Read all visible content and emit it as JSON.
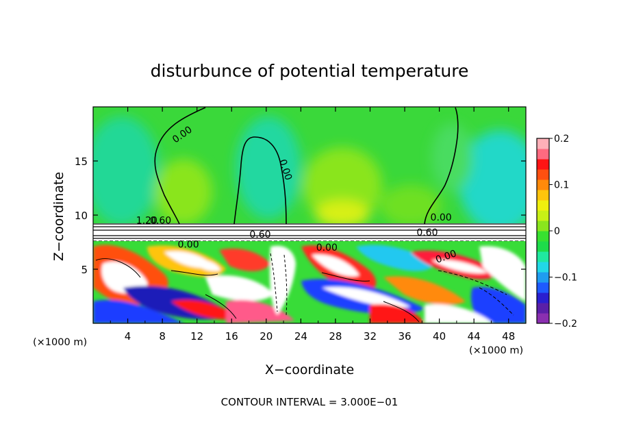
{
  "chart_data": {
    "type": "heatmap",
    "title": "disturbunce of potential temperature",
    "xlabel": "X−coordinate",
    "ylabel": "Z−coordinate",
    "x_unit_left": "(×1000 m)",
    "x_unit_right": "(×1000 m)",
    "xlim": [
      0,
      50
    ],
    "ylim": [
      0,
      20
    ],
    "xticks": [
      "4",
      "8",
      "12",
      "16",
      "20",
      "24",
      "28",
      "32",
      "36",
      "40",
      "44",
      "48"
    ],
    "xtick_values": [
      4,
      8,
      12,
      16,
      20,
      24,
      28,
      32,
      36,
      40,
      44,
      48
    ],
    "yticks": [
      "5",
      "10",
      "15"
    ],
    "ytick_values": [
      5,
      10,
      15
    ],
    "colorbar": {
      "range": [
        -0.2,
        0.2
      ],
      "tick_labels": [
        "0.2",
        "0.1",
        "0",
        "−0.1",
        "−0.2"
      ],
      "tick_values": [
        0.2,
        0.1,
        0,
        -0.1,
        -0.2
      ],
      "colors": [
        "#8a2fb0",
        "#5a1fa8",
        "#2a1fd0",
        "#1e5aff",
        "#1f9cf0",
        "#22d8e6",
        "#20e8a0",
        "#1edc4a",
        "#38e030",
        "#8ae51e",
        "#c8f016",
        "#f0f00e",
        "#ffc40c",
        "#ff8a0a",
        "#ff5010",
        "#ff1414",
        "#ff6a80",
        "#ffb0b8"
      ]
    },
    "contour_labels": [
      {
        "text": "0.00",
        "x": 10.5,
        "z": 17.2,
        "angle": -35
      },
      {
        "text": "0.00",
        "x": 21.9,
        "z": 14.1,
        "angle": 72
      },
      {
        "text": "0.00",
        "x": 40.2,
        "z": 9.5,
        "angle": 0
      },
      {
        "text": "1.20",
        "x": 6.2,
        "z": 9.2,
        "angle": 0
      },
      {
        "text": "0.60",
        "x": 7.8,
        "z": 9.2,
        "angle": 0
      },
      {
        "text": "0.00",
        "x": 11.0,
        "z": 7.0,
        "angle": 0
      },
      {
        "text": "0.60",
        "x": 19.3,
        "z": 7.9,
        "angle": 0
      },
      {
        "text": "0.00",
        "x": 27.0,
        "z": 6.7,
        "angle": 0
      },
      {
        "text": "0.60",
        "x": 38.6,
        "z": 8.1,
        "angle": 0
      },
      {
        "text": "0.00",
        "x": 40.9,
        "z": 5.9,
        "angle": -20
      }
    ],
    "annotation": "CONTOUR INTERVAL = 3.000E−01"
  }
}
